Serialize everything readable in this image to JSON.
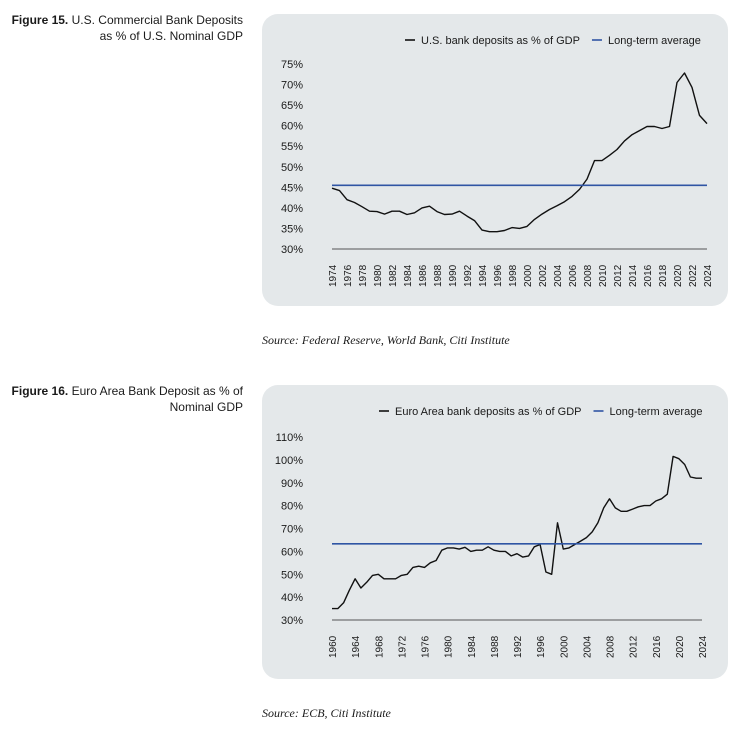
{
  "chart_data": [
    {
      "type": "line",
      "figure_number": "Figure 15.",
      "title": "U.S. Commercial Bank Deposits as % of U.S. Nominal GDP",
      "legend_position": "top-right",
      "xlim": [
        1974,
        2024
      ],
      "ylim": [
        30,
        75
      ],
      "yticks": [
        "30%",
        "35%",
        "40%",
        "45%",
        "50%",
        "55%",
        "60%",
        "65%",
        "70%",
        "75%"
      ],
      "xticks": [
        "1974",
        "1976",
        "1978",
        "1980",
        "1982",
        "1984",
        "1986",
        "1988",
        "1990",
        "1992",
        "1994",
        "1996",
        "1998",
        "2000",
        "2002",
        "2004",
        "2006",
        "2008",
        "2010",
        "2012",
        "2014",
        "2016",
        "2018",
        "2020",
        "2022",
        "2024"
      ],
      "series": [
        {
          "name": "U.S. bank deposits as % of GDP",
          "color": "#111111",
          "x": [
            1974,
            1975,
            1976,
            1977,
            1978,
            1979,
            1980,
            1981,
            1982,
            1983,
            1984,
            1985,
            1986,
            1987,
            1988,
            1989,
            1990,
            1991,
            1992,
            1993,
            1994,
            1995,
            1996,
            1997,
            1998,
            1999,
            2000,
            2001,
            2002,
            2003,
            2004,
            2005,
            2006,
            2007,
            2008,
            2009,
            2010,
            2011,
            2012,
            2013,
            2014,
            2015,
            2016,
            2017,
            2018,
            2019,
            2020,
            2021,
            2022,
            2023,
            2024
          ],
          "y": [
            44.8,
            44.2,
            42,
            41.3,
            40.3,
            39.2,
            39.1,
            38.5,
            39.2,
            39.2,
            38.4,
            38.8,
            40,
            40.4,
            39.1,
            38.4,
            38.5,
            39.2,
            38,
            36.9,
            34.6,
            34.2,
            34.2,
            34.5,
            35.2,
            35,
            35.5,
            37.2,
            38.5,
            39.6,
            40.5,
            41.5,
            42.8,
            44.5,
            47,
            51.5,
            51.5,
            52.8,
            54.2,
            56.3,
            57.8,
            58.8,
            59.8,
            59.8,
            59.3,
            59.8,
            70.5,
            72.8,
            69.3,
            62.5,
            60.5
          ]
        },
        {
          "name": "Long-term average",
          "color": "#2f55a4",
          "x": [
            1974,
            2024
          ],
          "y": [
            45.5,
            45.5
          ]
        }
      ],
      "source": "Source: Federal Reserve, World Bank, Citi Institute"
    },
    {
      "type": "line",
      "figure_number": "Figure 16.",
      "title": "Euro Area Bank Deposit as % of Nominal GDP",
      "legend_position": "top-right",
      "xlim": [
        1960,
        2024
      ],
      "ylim": [
        30,
        110
      ],
      "yticks": [
        "30%",
        "40%",
        "50%",
        "60%",
        "70%",
        "80%",
        "90%",
        "100%",
        "110%"
      ],
      "xticks": [
        "1960",
        "1964",
        "1968",
        "1972",
        "1976",
        "1980",
        "1984",
        "1988",
        "1992",
        "1996",
        "2000",
        "2004",
        "2008",
        "2012",
        "2016",
        "2020",
        "2024"
      ],
      "series": [
        {
          "name": "Euro Area bank deposits as % of GDP",
          "color": "#111111",
          "x": [
            1960,
            1961,
            1962,
            1963,
            1964,
            1965,
            1966,
            1967,
            1968,
            1969,
            1970,
            1971,
            1972,
            1973,
            1974,
            1975,
            1976,
            1977,
            1978,
            1979,
            1980,
            1981,
            1982,
            1983,
            1984,
            1985,
            1986,
            1987,
            1988,
            1989,
            1990,
            1991,
            1992,
            1993,
            1994,
            1995,
            1996,
            1997,
            1998,
            1999,
            2000,
            2001,
            2002,
            2003,
            2004,
            2005,
            2006,
            2007,
            2008,
            2009,
            2010,
            2011,
            2012,
            2013,
            2014,
            2015,
            2016,
            2017,
            2018,
            2019,
            2020,
            2021,
            2022,
            2023,
            2024
          ],
          "y": [
            35,
            35,
            37.5,
            43,
            48,
            44,
            46.5,
            49.5,
            50,
            48,
            48,
            48,
            49.5,
            50,
            53,
            53.5,
            53,
            55,
            56,
            60.5,
            61.5,
            61.5,
            61,
            61.8,
            60,
            60.5,
            60.5,
            62,
            60.5,
            60,
            60,
            58,
            59,
            57.5,
            58,
            62,
            63,
            51,
            50,
            72.5,
            61,
            61.5,
            63,
            64.5,
            66,
            68.5,
            72.5,
            79,
            83,
            79,
            77.5,
            77.5,
            78.5,
            79.5,
            80,
            80,
            82,
            83,
            85,
            101.5,
            100.5,
            98,
            92.5,
            92,
            92
          ]
        },
        {
          "name": "Long-term average",
          "color": "#2f55a4",
          "x": [
            1960,
            2024
          ],
          "y": [
            63.3,
            63.3
          ]
        }
      ],
      "source": "Source: ECB, Citi Institute"
    }
  ]
}
